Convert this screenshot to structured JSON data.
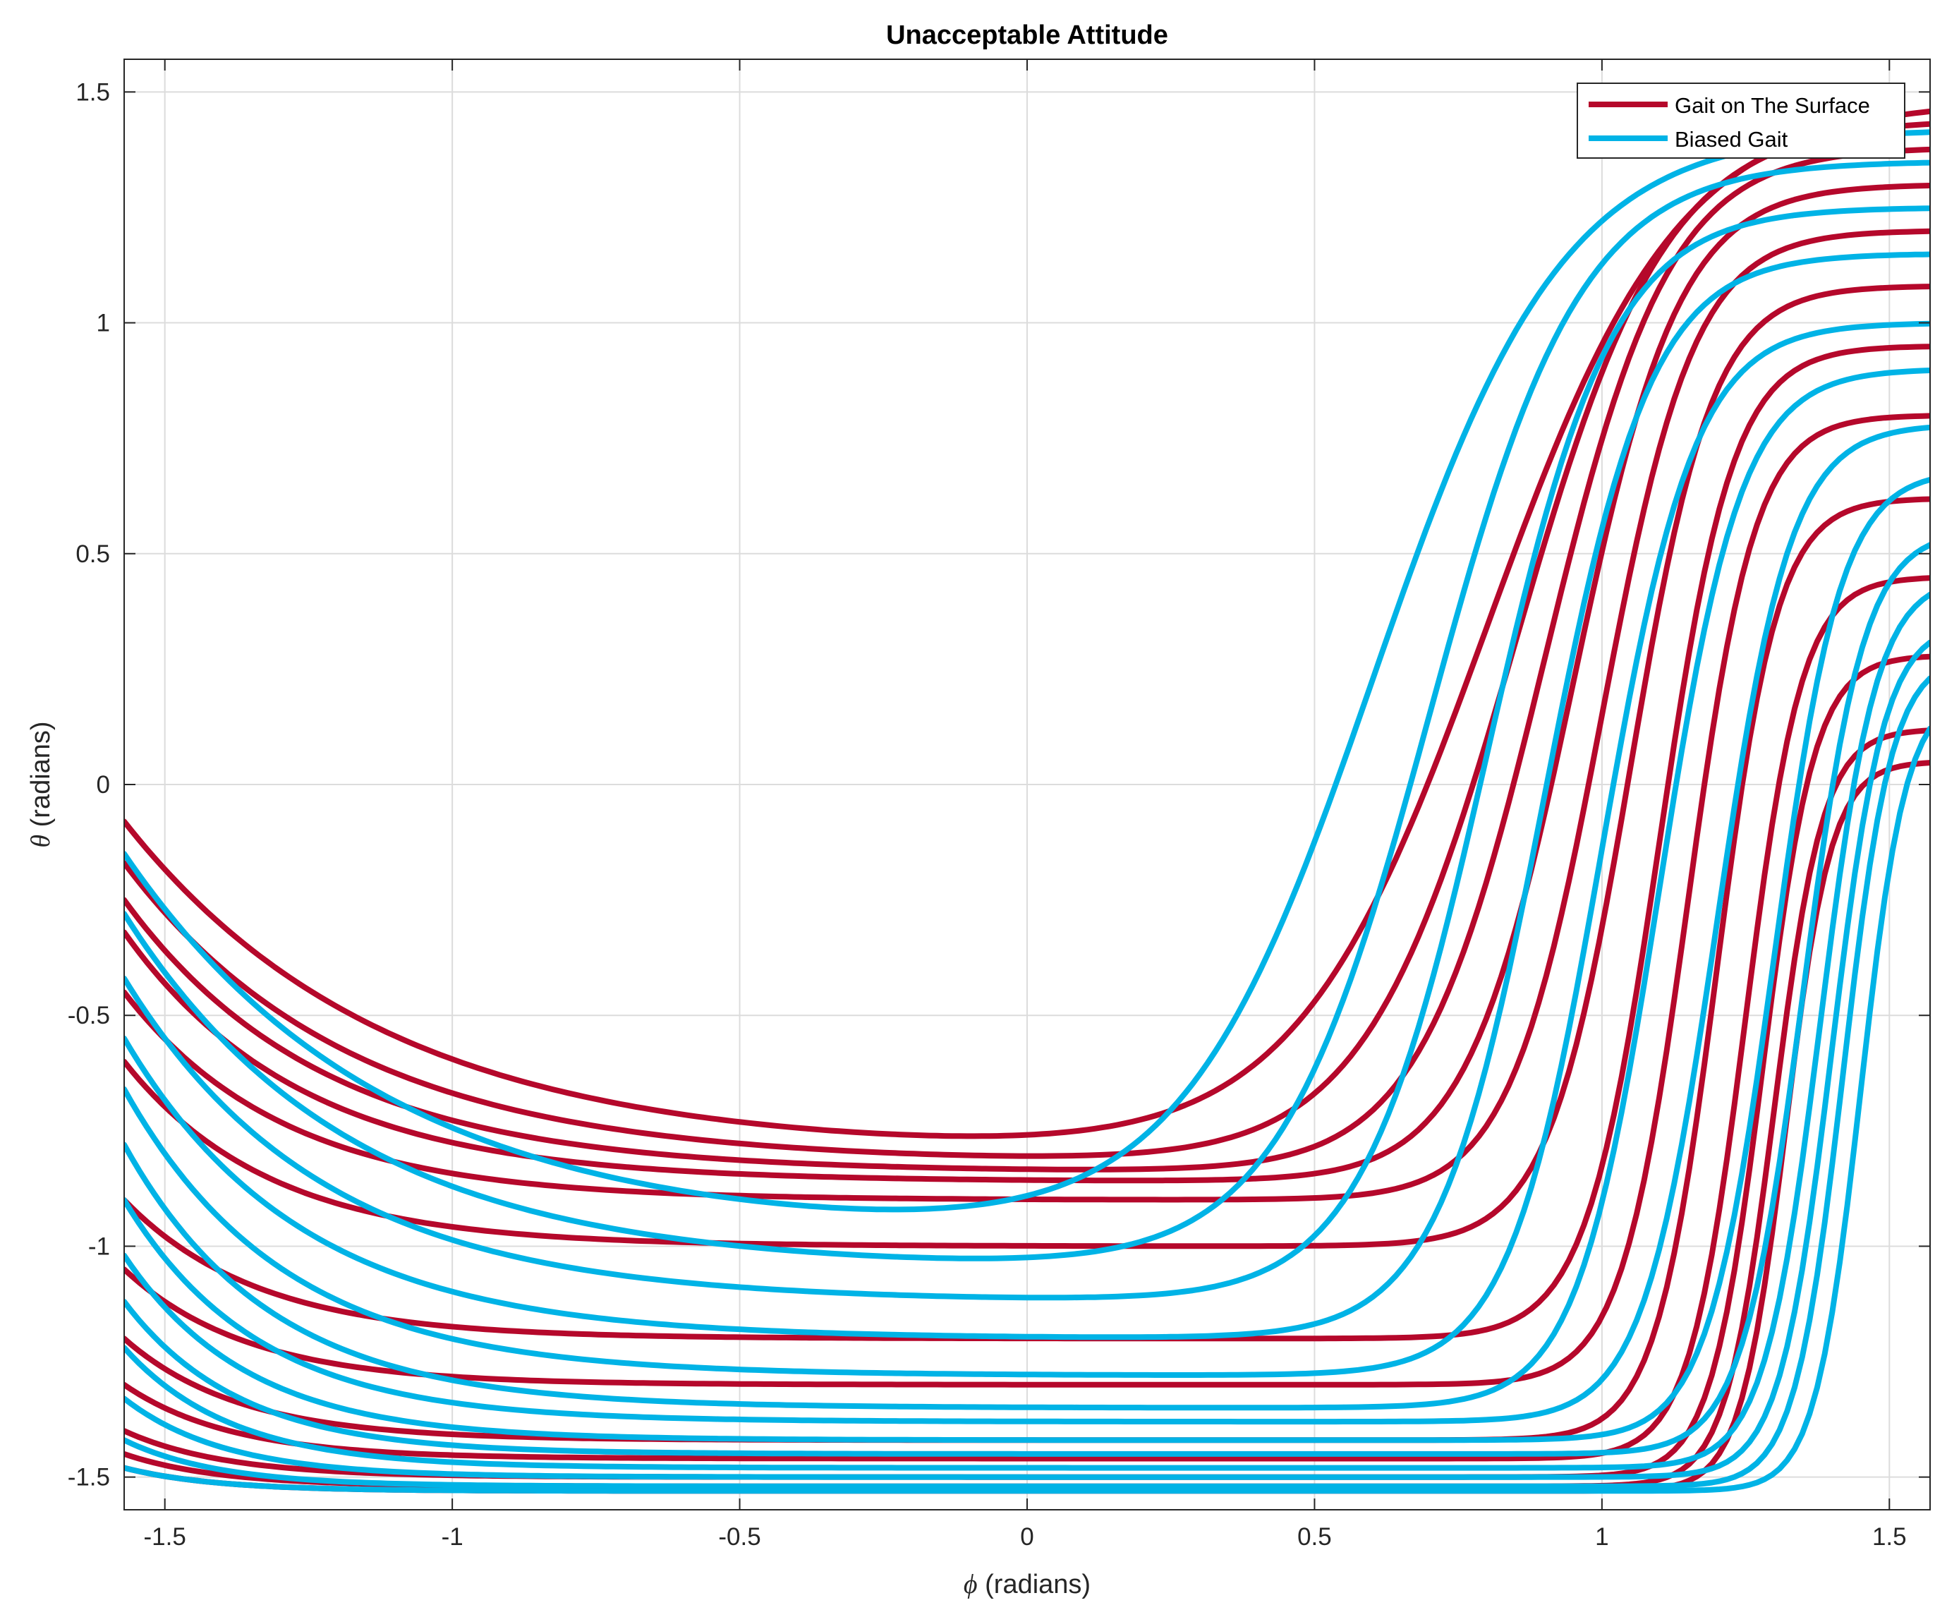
{
  "chart_data": {
    "type": "line",
    "title": "Unacceptable Attitude",
    "xlabel_symbol": "ϕ",
    "xlabel_text": " (radians)",
    "ylabel_symbol": "θ",
    "ylabel_text": " (radians)",
    "xlim": [
      -1.5708,
      1.5708
    ],
    "ylim": [
      -1.5708,
      1.5708
    ],
    "x_ticks": [
      -1.5,
      -1,
      -0.5,
      0,
      0.5,
      1,
      1.5
    ],
    "x_tick_labels": [
      "-1.5",
      "-1",
      "-0.5",
      "0",
      "0.5",
      "1",
      "1.5"
    ],
    "y_ticks": [
      -1.5,
      -1,
      -0.5,
      0,
      0.5,
      1,
      1.5
    ],
    "y_tick_labels": [
      "-1.5",
      "-1",
      "-0.5",
      "0",
      "0.5",
      "1",
      "1.5"
    ],
    "grid": true,
    "legend_position": "top-right",
    "series": [
      {
        "name": "Gait on The Surface",
        "color": "#B5082B",
        "curve_family": {
          "y_start": [
            -0.08,
            -0.17,
            -0.25,
            -0.32,
            -0.45,
            -0.6,
            -0.9,
            -1.05,
            -1.2,
            -1.3,
            -1.4,
            -1.45,
            -1.48
          ],
          "y_end": [
            1.48,
            1.44,
            1.38,
            1.3,
            1.2,
            1.08,
            0.95,
            0.8,
            0.62,
            0.45,
            0.28,
            0.12,
            0.05
          ],
          "y_floor": [
            -0.8,
            -0.82,
            -0.84,
            -0.86,
            -0.9,
            -1.0,
            -1.2,
            -1.3,
            -1.42,
            -1.46,
            -1.5,
            -1.52,
            -1.53
          ],
          "transition_x": [
            0.8,
            0.85,
            0.9,
            0.95,
            1.0,
            1.05,
            1.1,
            1.15,
            1.2,
            1.25,
            1.28,
            1.3,
            1.32
          ]
        }
      },
      {
        "name": "Biased Gait",
        "color": "#00B3E6",
        "curve_family": {
          "y_start": [
            -0.15,
            -0.28,
            -0.42,
            -0.55,
            -0.66,
            -0.78,
            -0.9,
            -1.02,
            -1.12,
            -1.22,
            -1.33,
            -1.42,
            -1.48
          ],
          "y_end": [
            1.42,
            1.35,
            1.25,
            1.15,
            1.0,
            0.9,
            0.78,
            0.68,
            0.55,
            0.45,
            0.35,
            0.28,
            0.2
          ],
          "y_floor": [
            -0.98,
            -1.05,
            -1.12,
            -1.2,
            -1.28,
            -1.35,
            -1.38,
            -1.42,
            -1.45,
            -1.48,
            -1.5,
            -1.52,
            -1.53
          ],
          "transition_x": [
            0.6,
            0.7,
            0.8,
            0.9,
            1.0,
            1.1,
            1.2,
            1.3,
            1.35,
            1.38,
            1.4,
            1.42,
            1.45
          ]
        }
      }
    ]
  }
}
